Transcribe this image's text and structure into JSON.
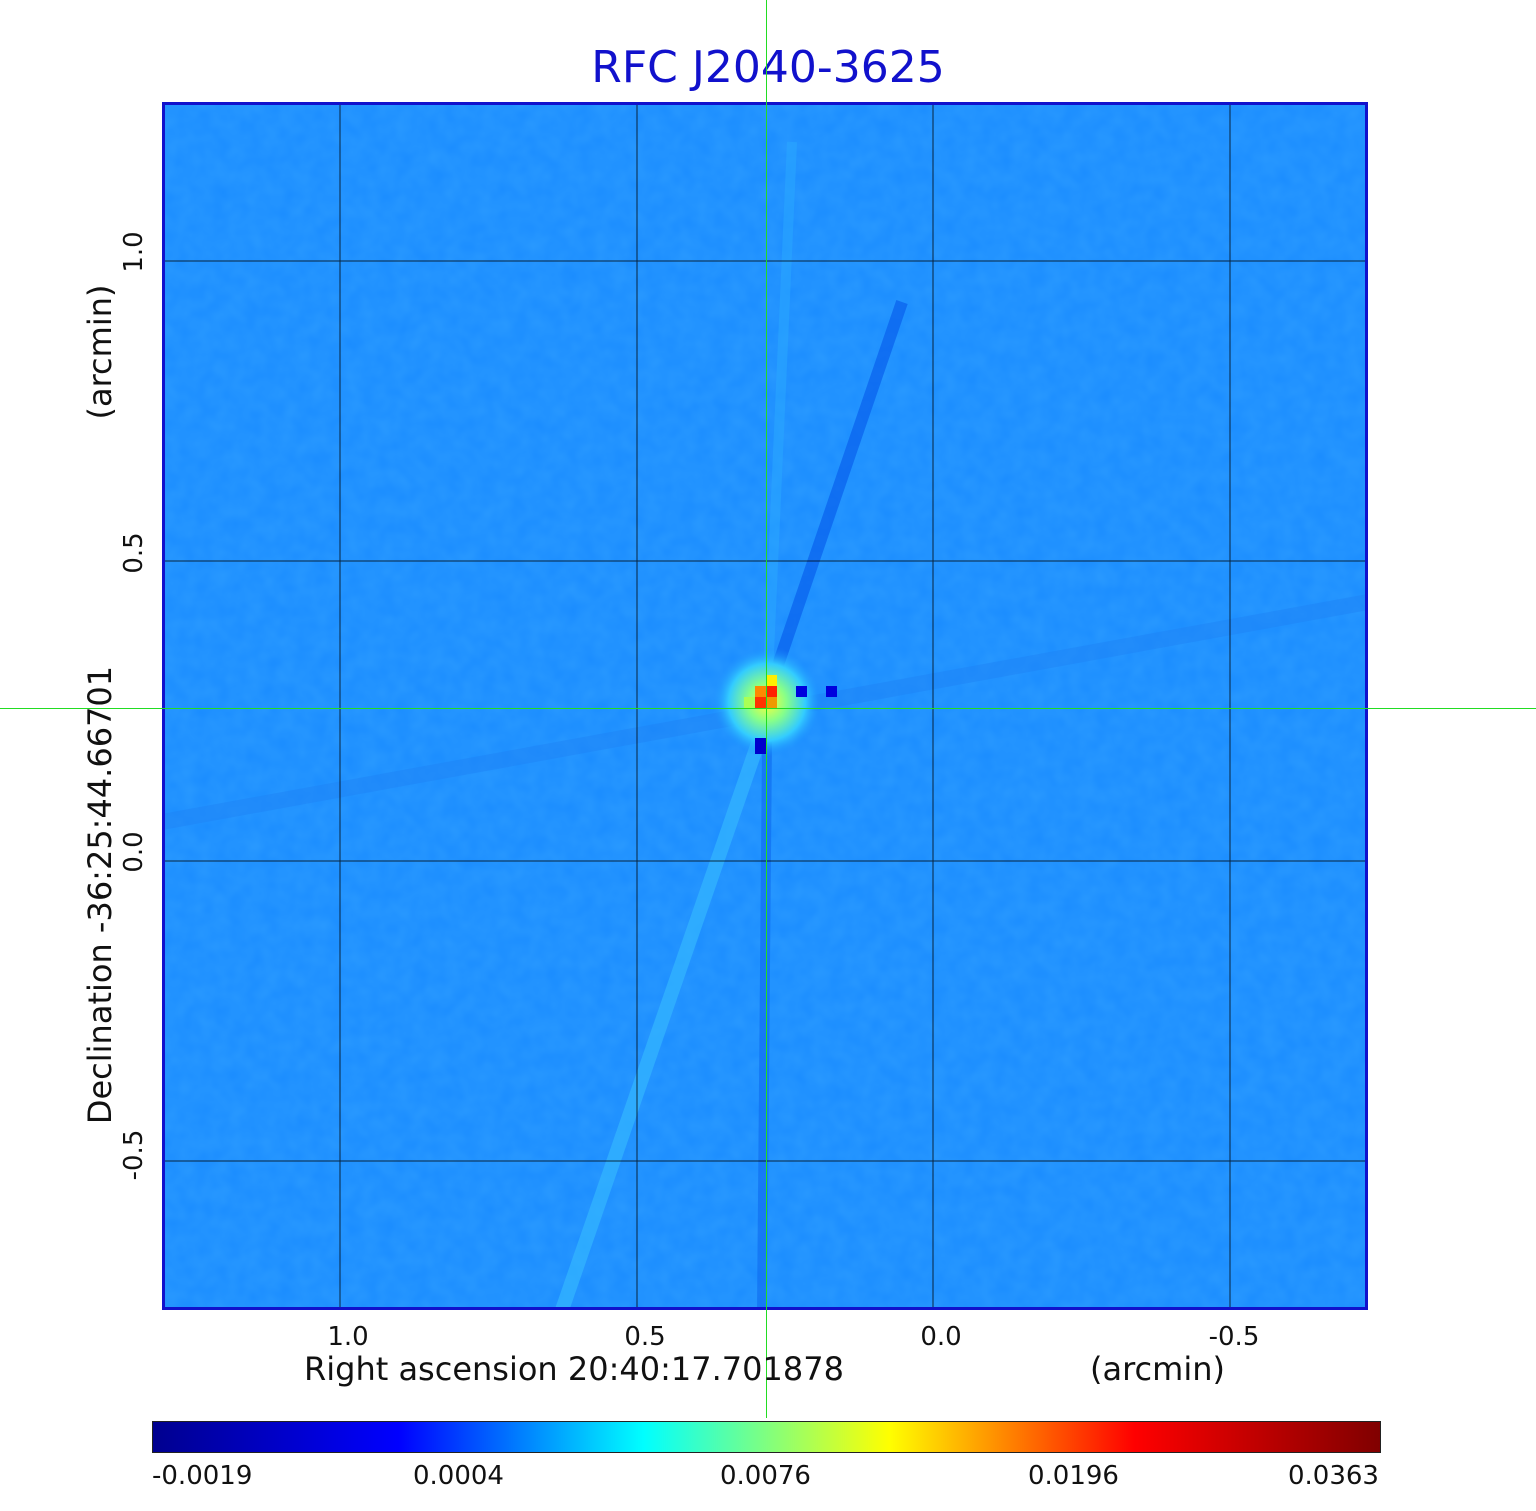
{
  "title": "RFC J2040-3625",
  "x_axis": {
    "label": "Right ascension  20:40:17.701878",
    "unit": "(arcmin)",
    "ticks": [
      "1.0",
      "0.5",
      "0.0",
      "-0.5"
    ]
  },
  "y_axis": {
    "label": "Declination  -36:25:44.66701",
    "unit": "(arcmin)",
    "ticks": [
      "1.0",
      "0.5",
      "0.0",
      "-0.5"
    ]
  },
  "colorbar": {
    "ticks": [
      "-0.0019",
      "0.0004",
      "0.0076",
      "0.0196",
      "0.0363"
    ],
    "colormap": [
      "#00008f",
      "#0000ff",
      "#00ffff",
      "#ffff00",
      "#ff0000",
      "#800000"
    ]
  },
  "colors": {
    "title": "#1111cc",
    "frame": "#1111cc",
    "background_field": "#1a8cff",
    "crosshair": "#22dd22",
    "grid": "#000000"
  }
}
